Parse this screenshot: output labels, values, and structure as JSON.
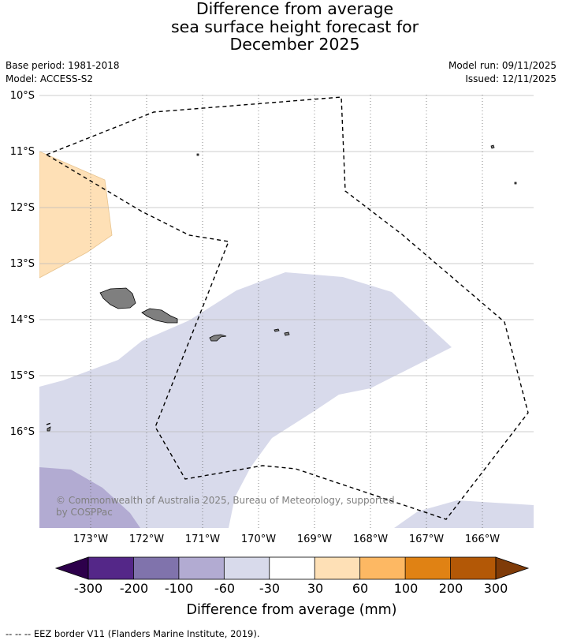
{
  "title": {
    "line1": "Difference from average",
    "line2": "sea surface height forecast for",
    "line3": "December 2025"
  },
  "info": {
    "base_period": "Base period: 1981-2018",
    "model": "Model: ACCESS-S2",
    "model_run": "Model run: 09/11/2025",
    "issued": "Issued: 12/11/2025"
  },
  "map": {
    "lat_labels": [
      "10°S",
      "11°S",
      "12°S",
      "13°S",
      "14°S",
      "15°S",
      "16°S"
    ],
    "lon_labels": [
      "173°W",
      "172°W",
      "171°W",
      "170°W",
      "169°W",
      "168°W",
      "167°W",
      "166°W"
    ],
    "copyright_line1": "© Commonwealth of Australia 2025, Bureau of Meteorology, supported",
    "copyright_line2": "by COSPPac"
  },
  "legend": {
    "title": "Difference from average (mm)",
    "tick_labels": [
      "-300",
      "-200",
      "-100",
      "-60",
      "-30",
      "30",
      "60",
      "100",
      "200",
      "300"
    ],
    "colors": [
      "#2d004b",
      "#542788",
      "#8073ac",
      "#b2abd2",
      "#d8daeb",
      "#ffffff",
      "#fee0b6",
      "#fdb863",
      "#e08214",
      "#b35806",
      "#7f3b08"
    ]
  },
  "footer": {
    "eez_note": "--  --  -- EEZ border V11 (Flanders Marine Institute, 2019)."
  }
}
